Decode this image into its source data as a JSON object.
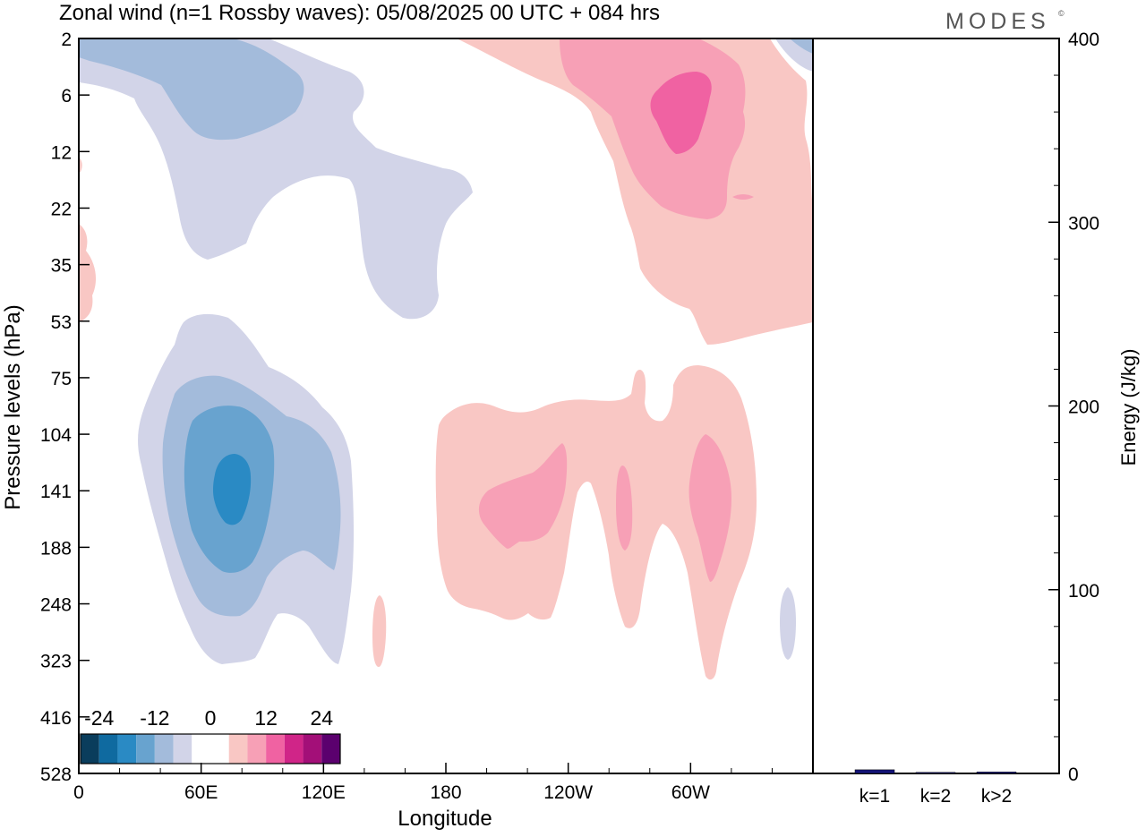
{
  "title": "Zonal wind (n=1 Rossby waves):  05/08/2025  00 UTC  + 084 hrs",
  "brand": "MODES",
  "brand_mark": "©",
  "chart_data": [
    {
      "type": "contour",
      "xlabel": "Longitude",
      "ylabel": "Pressure levels (hPa)",
      "x_ticks": [
        "0",
        "60E",
        "120E",
        "180",
        "120W",
        "60W"
      ],
      "y_ticks": [
        "2",
        "6",
        "12",
        "22",
        "35",
        "53",
        "75",
        "104",
        "141",
        "188",
        "248",
        "323",
        "416",
        "528"
      ],
      "colorbar": {
        "labels": [
          "-24",
          "-12",
          "0",
          "12",
          "24"
        ],
        "colors": [
          "#0a3d5c",
          "#0f6aa0",
          "#2a8ac4",
          "#68a3cf",
          "#a3bbdb",
          "#d2d4e8",
          "#ffffff",
          "#ffffff",
          "#f9c7c4",
          "#f7a0b6",
          "#f062a2",
          "#d02588",
          "#a30f78",
          "#5b006e"
        ]
      },
      "regions": [
        {
          "level": -6,
          "color": "#d2d4e8",
          "desc": "upper-left easterly band"
        },
        {
          "level": -12,
          "color": "#a3bbdb",
          "desc": "upper-left core"
        },
        {
          "level": 6,
          "color": "#f9c7c4",
          "desc": "upper-right westerly band"
        },
        {
          "level": 12,
          "color": "#f7a0b6",
          "desc": "upper-right core"
        },
        {
          "level": 18,
          "color": "#f062a2",
          "desc": "upper-right maximum"
        },
        {
          "level": -24,
          "color": "#2a8ac4",
          "desc": "mid-level minimum near 75E"
        },
        {
          "level": 12,
          "color": "#f7a0b6",
          "desc": "mid-level positive cores 160W-60W"
        }
      ]
    },
    {
      "type": "bar",
      "ylabel": "Energy (J/kg)",
      "ylim": [
        0,
        400
      ],
      "y_ticks": [
        "0",
        "100",
        "200",
        "300",
        "400"
      ],
      "categories": [
        "k=1",
        "k=2",
        "k>2"
      ],
      "values": [
        2,
        0.3,
        0.8
      ],
      "colors": [
        "#141478",
        "#141478",
        "#141478"
      ]
    }
  ]
}
